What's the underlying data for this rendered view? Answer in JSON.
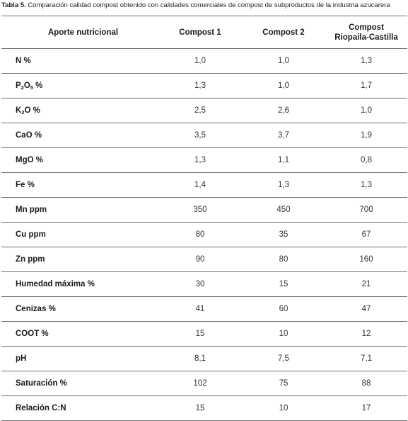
{
  "caption": {
    "prefix": "Tabla 5.",
    "text": " Comparación calidad compost obtenido con calidades comerciales de compost de subproductos de la industria azucarera"
  },
  "columns": {
    "c0": "Aporte nutricional",
    "c1": "Compost 1",
    "c2": "Compost 2",
    "c3_line1": "Compost",
    "c3_line2": "Riopaila-Castilla"
  },
  "rows": [
    {
      "label": "N %",
      "v1": "1,0",
      "v2": "1,0",
      "v3": "1,3"
    },
    {
      "label_pre": "P",
      "label_sub1": "2",
      "label_mid": "O",
      "label_sub2": "5",
      "label_post": " %",
      "v1": "1,3",
      "v2": "1,0",
      "v3": "1,7"
    },
    {
      "label_pre": "K",
      "label_sub1": "2",
      "label_post": "O %",
      "v1": "2,5",
      "v2": "2,6",
      "v3": "1,0"
    },
    {
      "label": "CaO %",
      "v1": "3,5",
      "v2": "3,7",
      "v3": "1,9"
    },
    {
      "label": "MgO %",
      "v1": "1,3",
      "v2": "1,1",
      "v3": "0,8"
    },
    {
      "label": "Fe %",
      "v1": "1,4",
      "v2": "1,3",
      "v3": "1,3"
    },
    {
      "label": "Mn ppm",
      "v1": "350",
      "v2": "450",
      "v3": "700"
    },
    {
      "label": "Cu ppm",
      "v1": "80",
      "v2": "35",
      "v3": "67"
    },
    {
      "label": "Zn ppm",
      "v1": "90",
      "v2": "80",
      "v3": "160"
    },
    {
      "label": "Humedad máxima %",
      "v1": "30",
      "v2": "15",
      "v3": "21"
    },
    {
      "label": "Cenizas %",
      "v1": "41",
      "v2": "60",
      "v3": "47"
    },
    {
      "label": "COOT %",
      "v1": "15",
      "v2": "10",
      "v3": "12"
    },
    {
      "label": "pH",
      "v1": "8,1",
      "v2": "7,5",
      "v3": "7,1"
    },
    {
      "label": "Saturación %",
      "v1": "102",
      "v2": "75",
      "v3": "88"
    },
    {
      "label": "Relación C:N",
      "v1": "15",
      "v2": "10",
      "v3": "17"
    }
  ]
}
